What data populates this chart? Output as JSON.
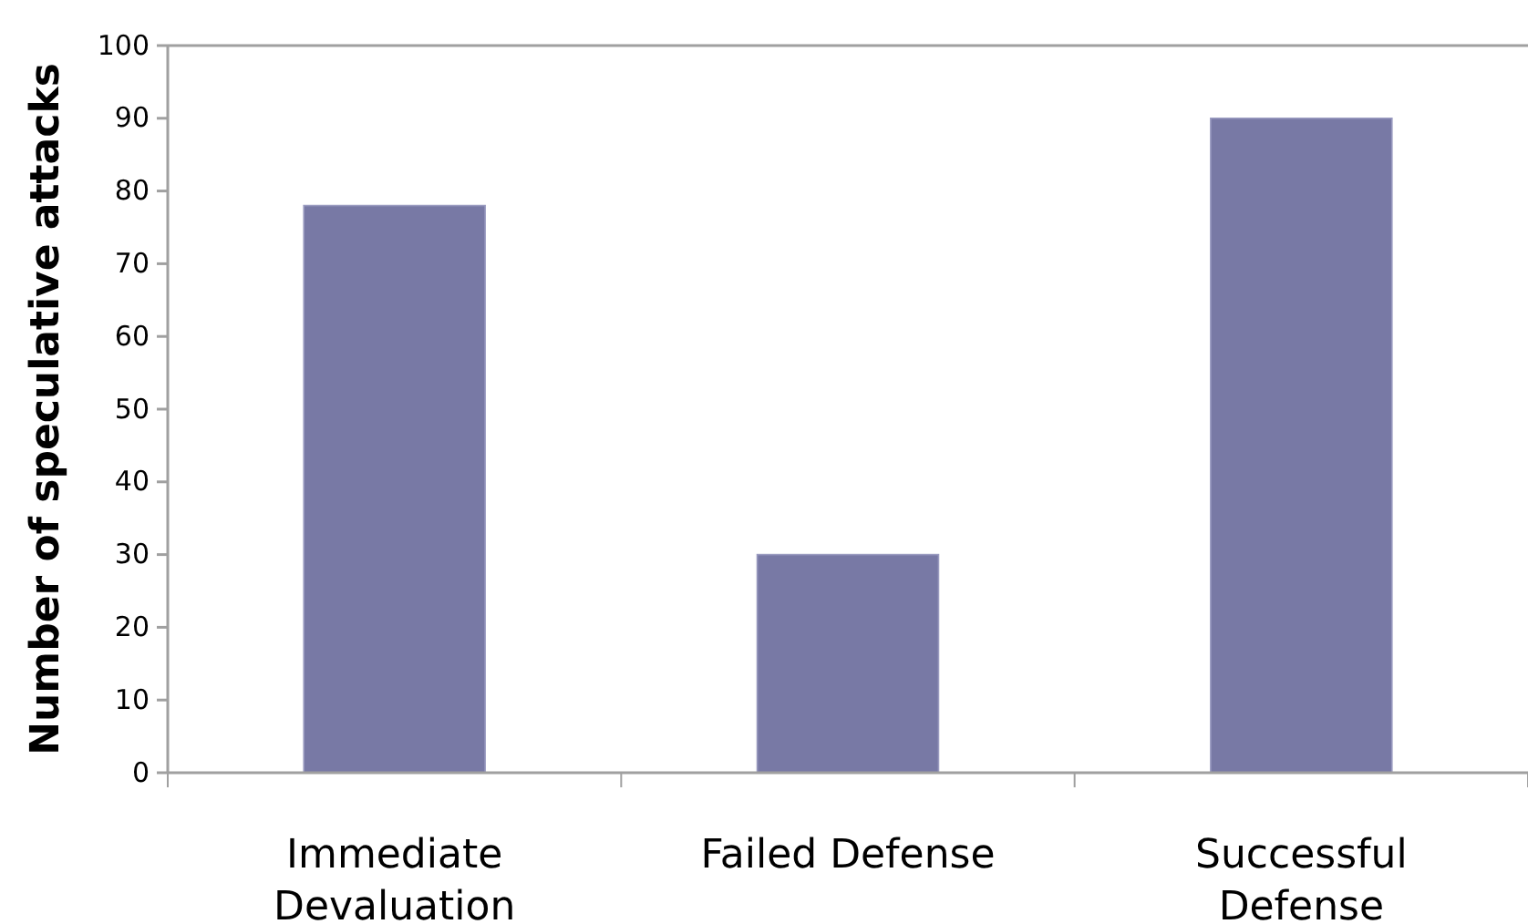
{
  "chart_data": {
    "type": "bar",
    "ylabel": "Number of speculative attacks",
    "categories": [
      "Immediate Devaluation",
      "Failed Defense",
      "Successful Defense"
    ],
    "values": [
      78,
      30,
      90
    ],
    "color": "#7879a5",
    "ylim": [
      0,
      100
    ],
    "yticks": [
      0,
      10,
      20,
      30,
      40,
      50,
      60,
      70,
      80,
      90,
      100
    ],
    "grid": false
  }
}
